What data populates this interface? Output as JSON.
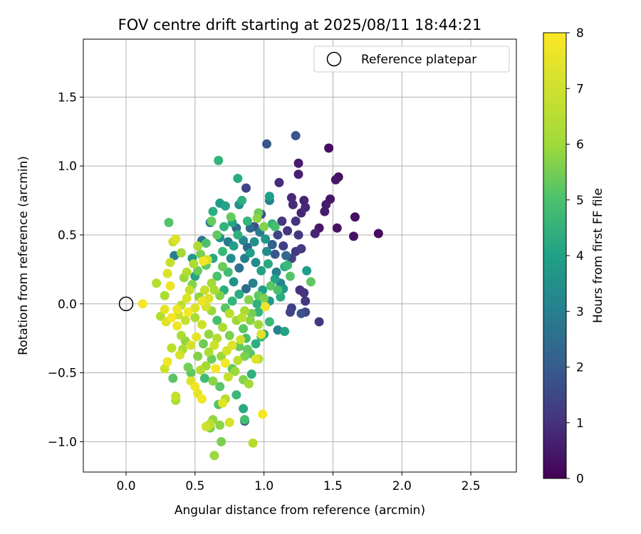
{
  "chart_data": {
    "type": "scatter",
    "title": "FOV centre drift starting at 2025/08/11 18:44:21",
    "xlabel": "Angular distance from reference (arcmin)",
    "ylabel": "Rotation from reference (arcmin)",
    "xlim": [
      -0.31,
      2.83
    ],
    "ylim": [
      -1.22,
      1.92
    ],
    "xticks": [
      0.0,
      0.5,
      1.0,
      1.5,
      2.0,
      2.5
    ],
    "xtick_labels": [
      "0.0",
      "0.5",
      "1.0",
      "1.5",
      "2.0",
      "2.5"
    ],
    "yticks": [
      -1.0,
      -0.5,
      0.0,
      0.5,
      1.0,
      1.5
    ],
    "ytick_labels": [
      "−1.0",
      "−0.5",
      "0.0",
      "0.5",
      "1.0",
      "1.5"
    ],
    "grid": true,
    "legend": {
      "placement": "upper-right",
      "entries": [
        {
          "label": "Reference platepar",
          "marker": "open-circle"
        }
      ]
    },
    "reference_point": {
      "x": 0.0,
      "y": 0.0
    },
    "colorbar": {
      "label": "Hours from first FF file",
      "colormap": "viridis",
      "range": [
        0,
        8
      ],
      "ticks": [
        0,
        1,
        2,
        3,
        4,
        5,
        6,
        7,
        8
      ],
      "tick_labels": [
        "0",
        "1",
        "2",
        "3",
        "4",
        "5",
        "6",
        "7",
        "8"
      ]
    },
    "points": [
      {
        "x": 1.83,
        "y": 0.51,
        "h": 0.2
      },
      {
        "x": 1.66,
        "y": 0.63,
        "h": 0.3
      },
      {
        "x": 1.65,
        "y": 0.49,
        "h": 0.4
      },
      {
        "x": 1.54,
        "y": 0.92,
        "h": 0.3
      },
      {
        "x": 1.52,
        "y": 0.9,
        "h": 0.5
      },
      {
        "x": 1.53,
        "y": 0.55,
        "h": 0.4
      },
      {
        "x": 1.47,
        "y": 1.13,
        "h": 0.3
      },
      {
        "x": 1.48,
        "y": 0.76,
        "h": 0.5
      },
      {
        "x": 1.45,
        "y": 0.72,
        "h": 0.6
      },
      {
        "x": 1.44,
        "y": 0.67,
        "h": 0.6
      },
      {
        "x": 1.4,
        "y": 0.55,
        "h": 0.5
      },
      {
        "x": 1.37,
        "y": 0.51,
        "h": 0.8
      },
      {
        "x": 1.25,
        "y": 1.02,
        "h": 0.6
      },
      {
        "x": 1.25,
        "y": 0.94,
        "h": 0.7
      },
      {
        "x": 1.29,
        "y": 0.75,
        "h": 0.8
      },
      {
        "x": 1.3,
        "y": 0.7,
        "h": 0.9
      },
      {
        "x": 1.27,
        "y": 0.66,
        "h": 0.8
      },
      {
        "x": 1.2,
        "y": 0.77,
        "h": 0.9
      },
      {
        "x": 1.21,
        "y": 0.72,
        "h": 1.0
      },
      {
        "x": 1.11,
        "y": 0.88,
        "h": 1.0
      },
      {
        "x": 1.23,
        "y": 1.22,
        "h": 2.1
      },
      {
        "x": 1.02,
        "y": 1.16,
        "h": 2.2
      },
      {
        "x": 1.23,
        "y": 0.6,
        "h": 1.2
      },
      {
        "x": 1.25,
        "y": 0.5,
        "h": 1.3
      },
      {
        "x": 1.13,
        "y": 0.6,
        "h": 1.3
      },
      {
        "x": 1.17,
        "y": 0.53,
        "h": 1.2
      },
      {
        "x": 1.27,
        "y": 0.4,
        "h": 1.4
      },
      {
        "x": 1.23,
        "y": 0.38,
        "h": 1.3
      },
      {
        "x": 1.14,
        "y": 0.42,
        "h": 1.5
      },
      {
        "x": 1.2,
        "y": 0.33,
        "h": 1.6
      },
      {
        "x": 1.26,
        "y": 0.1,
        "h": 1.1
      },
      {
        "x": 1.29,
        "y": 0.08,
        "h": 1.2
      },
      {
        "x": 1.3,
        "y": 0.02,
        "h": 1.3
      },
      {
        "x": 1.2,
        "y": -0.03,
        "h": 1.5
      },
      {
        "x": 1.19,
        "y": -0.06,
        "h": 1.6
      },
      {
        "x": 1.4,
        "y": -0.13,
        "h": 1.3
      },
      {
        "x": 1.04,
        "y": 0.78,
        "h": 4.5
      },
      {
        "x": 1.04,
        "y": 0.75,
        "h": 3.6
      },
      {
        "x": 0.98,
        "y": 0.65,
        "h": 1.9
      },
      {
        "x": 0.87,
        "y": 0.84,
        "h": 1.6
      },
      {
        "x": 0.81,
        "y": 0.91,
        "h": 4.9
      },
      {
        "x": 0.67,
        "y": 1.04,
        "h": 5.2
      },
      {
        "x": 0.63,
        "y": 0.67,
        "h": 5.0
      },
      {
        "x": 0.61,
        "y": 0.59,
        "h": 3.4
      },
      {
        "x": 0.62,
        "y": 0.6,
        "h": 6.1
      },
      {
        "x": 0.55,
        "y": 0.46,
        "h": 3.0
      },
      {
        "x": 0.31,
        "y": 0.59,
        "h": 5.8
      },
      {
        "x": 0.34,
        "y": 0.45,
        "h": 7.2
      },
      {
        "x": 0.35,
        "y": 0.46,
        "h": 7.4
      },
      {
        "x": 0.36,
        "y": 0.47,
        "h": 7.6
      },
      {
        "x": 0.35,
        "y": 0.35,
        "h": 3.4
      },
      {
        "x": 0.32,
        "y": 0.3,
        "h": 7.3
      },
      {
        "x": 0.4,
        "y": 0.37,
        "h": 6.9
      },
      {
        "x": 0.28,
        "y": 0.06,
        "h": 7.0
      },
      {
        "x": 0.22,
        "y": 0.15,
        "h": 7.1
      },
      {
        "x": 0.32,
        "y": 0.13,
        "h": 7.8
      },
      {
        "x": 0.12,
        "y": 0.0,
        "h": 7.9
      },
      {
        "x": 0.3,
        "y": 0.22,
        "h": 7.6
      },
      {
        "x": 0.48,
        "y": 0.33,
        "h": 4.2
      },
      {
        "x": 0.5,
        "y": 0.2,
        "h": 4.7
      },
      {
        "x": 0.56,
        "y": 0.31,
        "h": 7.9
      },
      {
        "x": 0.59,
        "y": 0.32,
        "h": 7.5
      },
      {
        "x": 0.52,
        "y": 0.42,
        "h": 7.0
      },
      {
        "x": 0.72,
        "y": 0.71,
        "h": 4.6
      },
      {
        "x": 0.68,
        "y": 0.73,
        "h": 4.4
      },
      {
        "x": 0.77,
        "y": 0.59,
        "h": 4.7
      },
      {
        "x": 0.82,
        "y": 0.72,
        "h": 4.0
      },
      {
        "x": 0.84,
        "y": 0.75,
        "h": 5.0
      },
      {
        "x": 0.9,
        "y": 0.55,
        "h": 2.8
      },
      {
        "x": 0.93,
        "y": 0.56,
        "h": 1.9
      },
      {
        "x": 0.96,
        "y": 0.66,
        "h": 6.2
      },
      {
        "x": 1.0,
        "y": 0.56,
        "h": 6.5
      },
      {
        "x": 1.06,
        "y": 0.58,
        "h": 5.2
      },
      {
        "x": 1.06,
        "y": 0.43,
        "h": 2.5
      },
      {
        "x": 1.02,
        "y": 0.38,
        "h": 3.8
      },
      {
        "x": 1.08,
        "y": 0.36,
        "h": 2.2
      },
      {
        "x": 1.15,
        "y": 0.27,
        "h": 5.0
      },
      {
        "x": 1.17,
        "y": 0.28,
        "h": 5.4
      },
      {
        "x": 1.09,
        "y": 0.23,
        "h": 3.5
      },
      {
        "x": 1.08,
        "y": 0.18,
        "h": 4.6
      },
      {
        "x": 1.12,
        "y": 0.15,
        "h": 3.6
      },
      {
        "x": 1.14,
        "y": 0.11,
        "h": 4.2
      },
      {
        "x": 1.1,
        "y": 0.1,
        "h": 5.7
      },
      {
        "x": 1.05,
        "y": 0.13,
        "h": 5.9
      },
      {
        "x": 1.04,
        "y": 0.02,
        "h": 4.3
      },
      {
        "x": 1.01,
        "y": -0.02,
        "h": 7.8
      },
      {
        "x": 0.96,
        "y": 0.06,
        "h": 6.0
      },
      {
        "x": 0.89,
        "y": 0.03,
        "h": 6.5
      },
      {
        "x": 0.86,
        "y": -0.05,
        "h": 7.0
      },
      {
        "x": 0.84,
        "y": -0.1,
        "h": 7.2
      },
      {
        "x": 0.9,
        "y": -0.12,
        "h": 6.6
      },
      {
        "x": 0.96,
        "y": -0.15,
        "h": 6.9
      },
      {
        "x": 1.04,
        "y": -0.13,
        "h": 5.4
      },
      {
        "x": 1.1,
        "y": -0.19,
        "h": 3.5
      },
      {
        "x": 1.0,
        "y": -0.22,
        "h": 4.8
      },
      {
        "x": 0.98,
        "y": -0.24,
        "h": 5.5
      },
      {
        "x": 0.98,
        "y": -0.22,
        "h": 7.6
      },
      {
        "x": 0.94,
        "y": -0.29,
        "h": 5.0
      },
      {
        "x": 0.88,
        "y": -0.33,
        "h": 6.1
      },
      {
        "x": 0.83,
        "y": -0.26,
        "h": 7.4
      },
      {
        "x": 0.77,
        "y": -0.3,
        "h": 7.6
      },
      {
        "x": 0.75,
        "y": -0.23,
        "h": 6.4
      },
      {
        "x": 0.7,
        "y": -0.17,
        "h": 7.0
      },
      {
        "x": 0.66,
        "y": -0.12,
        "h": 5.6
      },
      {
        "x": 0.62,
        "y": -0.05,
        "h": 6.8
      },
      {
        "x": 0.58,
        "y": -0.02,
        "h": 7.5
      },
      {
        "x": 0.55,
        "y": 0.02,
        "h": 7.8
      },
      {
        "x": 0.5,
        "y": -0.03,
        "h": 7.6
      },
      {
        "x": 0.45,
        "y": -0.06,
        "h": 7.9
      },
      {
        "x": 0.43,
        "y": -0.12,
        "h": 7.3
      },
      {
        "x": 0.38,
        "y": -0.08,
        "h": 7.4
      },
      {
        "x": 0.33,
        "y": -0.1,
        "h": 7.9
      },
      {
        "x": 0.28,
        "y": -0.04,
        "h": 7.7
      },
      {
        "x": 0.25,
        "y": -0.09,
        "h": 7.1
      },
      {
        "x": 0.29,
        "y": -0.13,
        "h": 7.6
      },
      {
        "x": 0.37,
        "y": -0.16,
        "h": 7.8
      },
      {
        "x": 0.4,
        "y": -0.23,
        "h": 7.0
      },
      {
        "x": 0.43,
        "y": -0.27,
        "h": 6.7
      },
      {
        "x": 0.47,
        "y": -0.3,
        "h": 7.5
      },
      {
        "x": 0.51,
        "y": -0.24,
        "h": 7.7
      },
      {
        "x": 0.56,
        "y": -0.29,
        "h": 6.2
      },
      {
        "x": 0.6,
        "y": -0.35,
        "h": 7.0
      },
      {
        "x": 0.64,
        "y": -0.3,
        "h": 7.4
      },
      {
        "x": 0.69,
        "y": -0.38,
        "h": 6.8
      },
      {
        "x": 0.72,
        "y": -0.43,
        "h": 7.9
      },
      {
        "x": 0.77,
        "y": -0.47,
        "h": 6.0
      },
      {
        "x": 0.81,
        "y": -0.41,
        "h": 7.2
      },
      {
        "x": 0.86,
        "y": -0.38,
        "h": 6.4
      },
      {
        "x": 0.9,
        "y": -0.36,
        "h": 5.8
      },
      {
        "x": 0.94,
        "y": -0.4,
        "h": 7.6
      },
      {
        "x": 0.96,
        "y": -0.4,
        "h": 7.1
      },
      {
        "x": 0.91,
        "y": -0.51,
        "h": 5.1
      },
      {
        "x": 0.85,
        "y": -0.55,
        "h": 6.5
      },
      {
        "x": 0.89,
        "y": -0.58,
        "h": 6.9
      },
      {
        "x": 0.8,
        "y": -0.66,
        "h": 5.4
      },
      {
        "x": 0.72,
        "y": -0.69,
        "h": 7.1
      },
      {
        "x": 0.7,
        "y": -0.72,
        "h": 7.7
      },
      {
        "x": 0.67,
        "y": -0.73,
        "h": 5.8
      },
      {
        "x": 0.85,
        "y": -0.76,
        "h": 4.8
      },
      {
        "x": 0.86,
        "y": -0.85,
        "h": 2.0
      },
      {
        "x": 0.86,
        "y": -0.84,
        "h": 5.6
      },
      {
        "x": 0.99,
        "y": -0.8,
        "h": 7.9
      },
      {
        "x": 0.75,
        "y": -0.86,
        "h": 7.5
      },
      {
        "x": 0.63,
        "y": -0.84,
        "h": 6.7
      },
      {
        "x": 0.61,
        "y": -0.87,
        "h": 7.2
      },
      {
        "x": 0.6,
        "y": -0.89,
        "h": 7.0
      },
      {
        "x": 0.58,
        "y": -0.89,
        "h": 7.4
      },
      {
        "x": 0.61,
        "y": -0.9,
        "h": 6.2
      },
      {
        "x": 0.68,
        "y": -0.88,
        "h": 6.6
      },
      {
        "x": 0.69,
        "y": -1.0,
        "h": 6.4
      },
      {
        "x": 0.64,
        "y": -1.1,
        "h": 6.8
      },
      {
        "x": 0.92,
        "y": -1.01,
        "h": 7.1
      },
      {
        "x": 0.55,
        "y": -0.69,
        "h": 7.9
      },
      {
        "x": 0.52,
        "y": -0.65,
        "h": 7.7
      },
      {
        "x": 0.5,
        "y": -0.6,
        "h": 7.8
      },
      {
        "x": 0.47,
        "y": -0.56,
        "h": 7.6
      },
      {
        "x": 0.36,
        "y": -0.67,
        "h": 7.3
      },
      {
        "x": 0.36,
        "y": -0.7,
        "h": 7.0
      },
      {
        "x": 0.34,
        "y": -0.54,
        "h": 5.9
      },
      {
        "x": 0.3,
        "y": -0.42,
        "h": 7.8
      },
      {
        "x": 0.28,
        "y": -0.47,
        "h": 7.4
      },
      {
        "x": 0.33,
        "y": -0.32,
        "h": 7.2
      },
      {
        "x": 0.39,
        "y": -0.37,
        "h": 7.5
      },
      {
        "x": 0.45,
        "y": -0.46,
        "h": 6.3
      },
      {
        "x": 0.47,
        "y": -0.5,
        "h": 6.0
      },
      {
        "x": 0.54,
        "y": -0.48,
        "h": 7.1
      },
      {
        "x": 0.58,
        "y": -0.45,
        "h": 6.9
      },
      {
        "x": 0.57,
        "y": -0.54,
        "h": 5.5
      },
      {
        "x": 0.63,
        "y": -0.56,
        "h": 6.6
      },
      {
        "x": 0.68,
        "y": -0.6,
        "h": 5.9
      },
      {
        "x": 0.74,
        "y": -0.53,
        "h": 7.3
      },
      {
        "x": 0.79,
        "y": -0.49,
        "h": 6.8
      },
      {
        "x": 0.65,
        "y": -0.47,
        "h": 7.9
      },
      {
        "x": 0.62,
        "y": -0.4,
        "h": 6.2
      },
      {
        "x": 0.6,
        "y": -0.22,
        "h": 6.7
      },
      {
        "x": 0.55,
        "y": -0.15,
        "h": 7.4
      },
      {
        "x": 0.5,
        "y": -0.1,
        "h": 7.0
      },
      {
        "x": 0.53,
        "y": 0.05,
        "h": 6.6
      },
      {
        "x": 0.57,
        "y": 0.1,
        "h": 7.3
      },
      {
        "x": 0.62,
        "y": 0.15,
        "h": 6.9
      },
      {
        "x": 0.66,
        "y": 0.2,
        "h": 5.7
      },
      {
        "x": 0.7,
        "y": 0.27,
        "h": 6.2
      },
      {
        "x": 0.74,
        "y": 0.23,
        "h": 5.5
      },
      {
        "x": 0.78,
        "y": 0.16,
        "h": 4.1
      },
      {
        "x": 0.82,
        "y": 0.26,
        "h": 3.0
      },
      {
        "x": 0.86,
        "y": 0.33,
        "h": 3.4
      },
      {
        "x": 0.9,
        "y": 0.37,
        "h": 4.4
      },
      {
        "x": 0.94,
        "y": 0.3,
        "h": 3.9
      },
      {
        "x": 0.98,
        "y": 0.24,
        "h": 4.6
      },
      {
        "x": 0.92,
        "y": 0.15,
        "h": 3.6
      },
      {
        "x": 0.87,
        "y": 0.11,
        "h": 2.8
      },
      {
        "x": 0.82,
        "y": 0.07,
        "h": 4.9
      },
      {
        "x": 0.77,
        "y": 0.02,
        "h": 5.3
      },
      {
        "x": 0.72,
        "y": -0.03,
        "h": 5.9
      },
      {
        "x": 0.68,
        "y": 0.06,
        "h": 6.5
      },
      {
        "x": 0.64,
        "y": 0.1,
        "h": 7.0
      },
      {
        "x": 0.6,
        "y": 0.04,
        "h": 7.6
      },
      {
        "x": 0.46,
        "y": 0.1,
        "h": 7.3
      },
      {
        "x": 0.42,
        "y": 0.19,
        "h": 6.8
      },
      {
        "x": 0.44,
        "y": 0.23,
        "h": 7.1
      },
      {
        "x": 0.48,
        "y": 0.14,
        "h": 6.5
      },
      {
        "x": 0.52,
        "y": 0.24,
        "h": 6.2
      },
      {
        "x": 0.58,
        "y": 0.28,
        "h": 6.0
      },
      {
        "x": 0.63,
        "y": 0.33,
        "h": 4.8
      },
      {
        "x": 0.7,
        "y": 0.38,
        "h": 5.4
      },
      {
        "x": 0.74,
        "y": 0.45,
        "h": 3.2
      },
      {
        "x": 0.78,
        "y": 0.42,
        "h": 4.5
      },
      {
        "x": 0.81,
        "y": 0.5,
        "h": 5.1
      },
      {
        "x": 0.85,
        "y": 0.46,
        "h": 3.7
      },
      {
        "x": 0.88,
        "y": 0.41,
        "h": 2.6
      },
      {
        "x": 0.93,
        "y": 0.45,
        "h": 4.0
      },
      {
        "x": 0.97,
        "y": 0.52,
        "h": 3.3
      },
      {
        "x": 1.01,
        "y": 0.47,
        "h": 4.2
      },
      {
        "x": 1.03,
        "y": 0.29,
        "h": 4.8
      },
      {
        "x": 0.99,
        "y": 0.1,
        "h": 4.5
      },
      {
        "x": 0.95,
        "y": 0.0,
        "h": 5.1
      },
      {
        "x": 0.91,
        "y": -0.07,
        "h": 6.3
      },
      {
        "x": 0.85,
        "y": -0.18,
        "h": 5.9
      },
      {
        "x": 0.8,
        "y": -0.12,
        "h": 6.8
      },
      {
        "x": 0.75,
        "y": -0.07,
        "h": 7.2
      },
      {
        "x": 0.71,
        "y": 0.1,
        "h": 5.0
      },
      {
        "x": 0.76,
        "y": 0.33,
        "h": 3.9
      },
      {
        "x": 0.68,
        "y": 0.48,
        "h": 4.1
      },
      {
        "x": 0.71,
        "y": 0.56,
        "h": 5.2
      },
      {
        "x": 0.66,
        "y": 0.5,
        "h": 6.0
      },
      {
        "x": 0.58,
        "y": 0.44,
        "h": 5.7
      },
      {
        "x": 0.54,
        "y": 0.36,
        "h": 6.4
      },
      {
        "x": 0.49,
        "y": 0.29,
        "h": 7.0
      },
      {
        "x": 0.44,
        "y": 0.04,
        "h": 7.6
      },
      {
        "x": 0.4,
        "y": -0.01,
        "h": 7.2
      },
      {
        "x": 0.37,
        "y": -0.04,
        "h": 7.8
      },
      {
        "x": 0.41,
        "y": -0.33,
        "h": 7.0
      },
      {
        "x": 0.52,
        "y": -0.38,
        "h": 6.5
      },
      {
        "x": 0.66,
        "y": -0.25,
        "h": 7.1
      },
      {
        "x": 0.73,
        "y": -0.34,
        "h": 7.5
      },
      {
        "x": 0.82,
        "y": -0.31,
        "h": 6.1
      },
      {
        "x": 0.87,
        "y": -0.25,
        "h": 5.6
      },
      {
        "x": 0.96,
        "y": -0.06,
        "h": 5.3
      },
      {
        "x": 1.0,
        "y": 0.04,
        "h": 6.4
      },
      {
        "x": 1.12,
        "y": 0.05,
        "h": 4.9
      },
      {
        "x": 1.19,
        "y": 0.2,
        "h": 5.8
      },
      {
        "x": 1.16,
        "y": 0.35,
        "h": 2.7
      },
      {
        "x": 1.1,
        "y": 0.5,
        "h": 1.6
      },
      {
        "x": 1.08,
        "y": 0.56,
        "h": 5.6
      },
      {
        "x": 0.95,
        "y": 0.62,
        "h": 6.6
      },
      {
        "x": 0.88,
        "y": 0.6,
        "h": 5.3
      },
      {
        "x": 0.8,
        "y": 0.55,
        "h": 2.9
      },
      {
        "x": 0.76,
        "y": 0.63,
        "h": 6.1
      },
      {
        "x": 1.31,
        "y": 0.24,
        "h": 4.4
      },
      {
        "x": 1.34,
        "y": 0.16,
        "h": 6.0
      },
      {
        "x": 1.15,
        "y": -0.2,
        "h": 4.6
      },
      {
        "x": 1.3,
        "y": -0.06,
        "h": 1.7
      },
      {
        "x": 1.27,
        "y": -0.07,
        "h": 2.0
      }
    ]
  }
}
